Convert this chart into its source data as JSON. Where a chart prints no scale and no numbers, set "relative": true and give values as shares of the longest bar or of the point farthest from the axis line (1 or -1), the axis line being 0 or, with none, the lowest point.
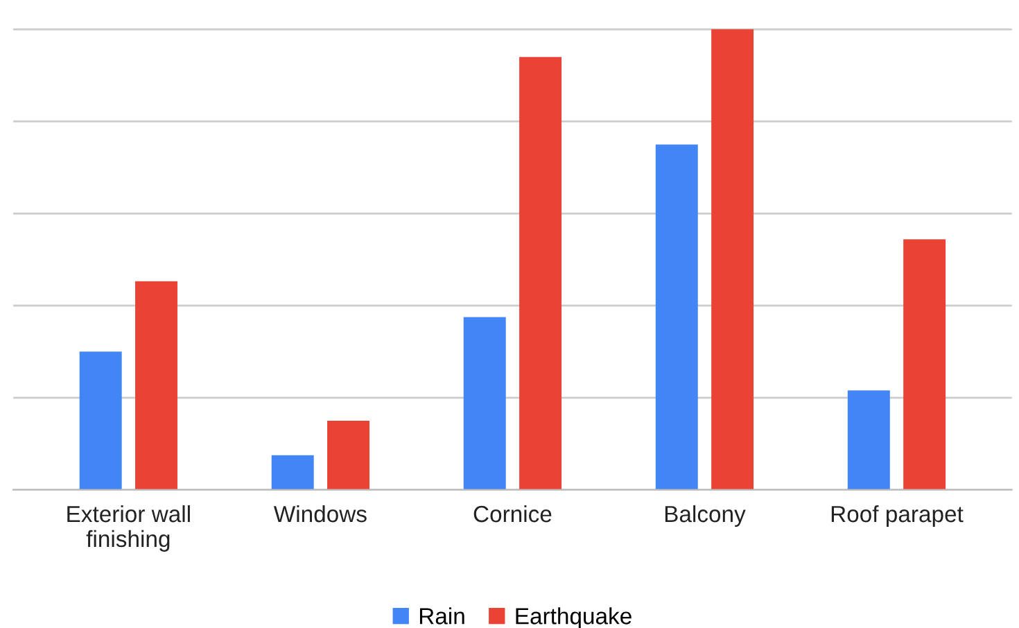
{
  "chart_data": {
    "type": "bar",
    "relative": true,
    "categories": [
      "Exterior wall\nfinishing",
      "Windows",
      "Cornice",
      "Balcony",
      "Roof parapet"
    ],
    "series": [
      {
        "name": "Rain",
        "color": "#4285f4",
        "values": [
          0.3,
          0.075,
          0.375,
          0.75,
          0.216
        ]
      },
      {
        "name": "Earthquake",
        "color": "#ea4335",
        "values": [
          0.453,
          0.15,
          0.94,
          1,
          0.544
        ]
      }
    ],
    "grid": "y",
    "legend": "bottom"
  }
}
